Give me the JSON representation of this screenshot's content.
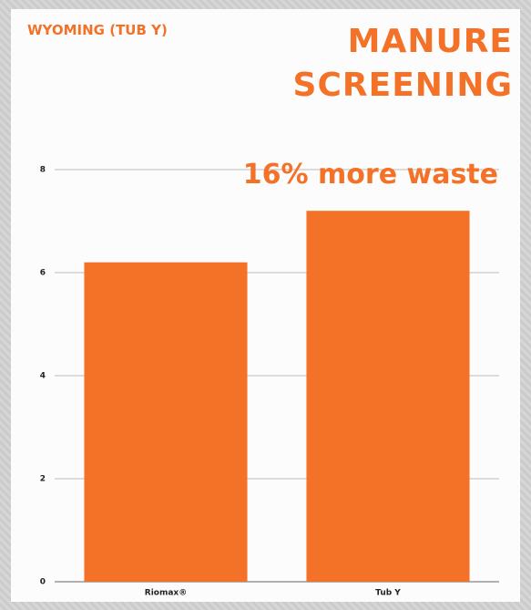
{
  "chart_data": {
    "type": "bar",
    "title": "MANURE SCREENING",
    "subtitle": "WYOMING (TUB Y)",
    "annotation": "16% more waste",
    "categories": [
      "Riomax®",
      "Tub Y"
    ],
    "values": [
      6.2,
      7.2
    ],
    "color": "#f47228",
    "ylim": [
      0,
      8
    ],
    "yticks": [
      0,
      2,
      4,
      6,
      8
    ],
    "grid": true
  }
}
